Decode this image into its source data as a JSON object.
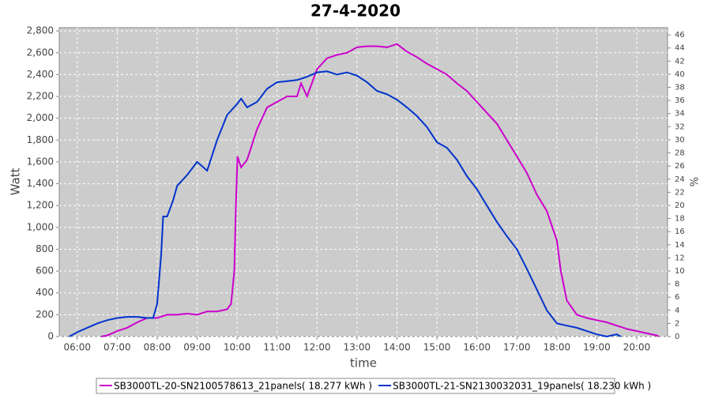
{
  "chart_data": {
    "type": "line",
    "title": "27-4-2020",
    "x_label": "time",
    "y_label": "Watt",
    "y2_label": "%",
    "xlim": [
      5.55,
      20.77
    ],
    "xticks": [
      {
        "value": 6,
        "label": "06:00"
      },
      {
        "value": 7,
        "label": "07:00"
      },
      {
        "value": 8,
        "label": "08:00"
      },
      {
        "value": 9,
        "label": "09:00"
      },
      {
        "value": 10,
        "label": "10:00"
      },
      {
        "value": 11,
        "label": "11:00"
      },
      {
        "value": 12,
        "label": "12:00"
      },
      {
        "value": 13,
        "label": "13:00"
      },
      {
        "value": 14,
        "label": "14:00"
      },
      {
        "value": 15,
        "label": "15:00"
      },
      {
        "value": 16,
        "label": "16:00"
      },
      {
        "value": 17,
        "label": "17:00"
      },
      {
        "value": 18,
        "label": "18:00"
      },
      {
        "value": 19,
        "label": "19:00"
      },
      {
        "value": 20,
        "label": "20:00"
      }
    ],
    "ylim": [
      0,
      2830
    ],
    "yticks": [
      0,
      {
        "value": 200,
        "label": "200"
      },
      {
        "value": 400,
        "label": "400"
      },
      {
        "value": 600,
        "label": "600"
      },
      {
        "value": 800,
        "label": "800"
      },
      {
        "value": 1000,
        "label": "1,000"
      },
      {
        "value": 1200,
        "label": "1,200"
      },
      {
        "value": 1400,
        "label": "1,400"
      },
      {
        "value": 1600,
        "label": "1,600"
      },
      {
        "value": 1800,
        "label": "1,800"
      },
      {
        "value": 2000,
        "label": "2,000"
      },
      {
        "value": 2200,
        "label": "2,200"
      },
      {
        "value": 2400,
        "label": "2,400"
      },
      {
        "value": 2600,
        "label": "2,600"
      },
      {
        "value": 2800,
        "label": "2,800"
      }
    ],
    "y2lim": [
      0,
      47.1
    ],
    "y2ticks": [
      0,
      2,
      4,
      6,
      8,
      10,
      12,
      14,
      16,
      18,
      20,
      22,
      24,
      26,
      28,
      30,
      32,
      34,
      36,
      38,
      40,
      42,
      44,
      46
    ],
    "grid": true,
    "legend": "bottom",
    "series": [
      {
        "name": "SB3000TL-20-SN2100578613_21panels( 18.277 kWh )",
        "color": "#cc00cc",
        "x": [
          6.6,
          6.75,
          7.0,
          7.25,
          7.5,
          7.75,
          8.0,
          8.25,
          8.5,
          8.75,
          9.0,
          9.25,
          9.5,
          9.75,
          9.85,
          9.93,
          9.97,
          10.01,
          10.1,
          10.25,
          10.5,
          10.75,
          11.0,
          11.25,
          11.5,
          11.6,
          11.75,
          12.0,
          12.25,
          12.5,
          12.75,
          13.0,
          13.25,
          13.5,
          13.75,
          14.0,
          14.25,
          14.5,
          14.75,
          15.0,
          15.25,
          15.5,
          15.75,
          16.0,
          16.25,
          16.5,
          16.75,
          17.0,
          17.25,
          17.5,
          17.75,
          18.0,
          18.1,
          18.25,
          18.5,
          18.75,
          19.0,
          19.25,
          19.5,
          19.75,
          20.0,
          20.25,
          20.5,
          20.55
        ],
        "values": [
          0,
          10,
          50,
          80,
          130,
          170,
          170,
          200,
          200,
          210,
          200,
          230,
          230,
          250,
          300,
          600,
          1200,
          1650,
          1550,
          1620,
          1900,
          2100,
          2150,
          2200,
          2200,
          2320,
          2200,
          2450,
          2550,
          2580,
          2600,
          2650,
          2660,
          2660,
          2650,
          2680,
          2610,
          2560,
          2500,
          2450,
          2400,
          2320,
          2250,
          2150,
          2050,
          1950,
          1800,
          1650,
          1500,
          1300,
          1150,
          880,
          600,
          330,
          200,
          170,
          150,
          130,
          100,
          70,
          50,
          30,
          10,
          0
        ]
      },
      {
        "name": "SB3000TL-21-SN2130032031_19panels( 18.230 kWh )",
        "color": "#0033cc",
        "x": [
          5.8,
          6.0,
          6.25,
          6.5,
          6.75,
          7.0,
          7.25,
          7.5,
          7.75,
          7.9,
          8.0,
          8.1,
          8.15,
          8.25,
          8.4,
          8.5,
          8.75,
          9.0,
          9.25,
          9.5,
          9.75,
          10.0,
          10.1,
          10.25,
          10.5,
          10.75,
          11.0,
          11.25,
          11.5,
          11.75,
          12.0,
          12.25,
          12.5,
          12.75,
          13.0,
          13.25,
          13.5,
          13.75,
          14.0,
          14.25,
          14.5,
          14.75,
          15.0,
          15.25,
          15.5,
          15.75,
          16.0,
          16.25,
          16.5,
          16.75,
          17.0,
          17.25,
          17.5,
          17.75,
          18.0,
          18.25,
          18.5,
          18.75,
          19.0,
          19.25,
          19.5,
          19.6
        ],
        "values": [
          0,
          40,
          80,
          120,
          150,
          170,
          180,
          180,
          170,
          170,
          300,
          750,
          1100,
          1100,
          1250,
          1380,
          1480,
          1600,
          1520,
          1800,
          2030,
          2130,
          2180,
          2100,
          2150,
          2270,
          2330,
          2340,
          2350,
          2380,
          2420,
          2430,
          2400,
          2420,
          2390,
          2330,
          2250,
          2220,
          2170,
          2100,
          2020,
          1920,
          1780,
          1730,
          1620,
          1470,
          1350,
          1200,
          1050,
          920,
          800,
          620,
          430,
          240,
          120,
          100,
          80,
          50,
          20,
          0,
          20,
          0
        ]
      }
    ]
  }
}
